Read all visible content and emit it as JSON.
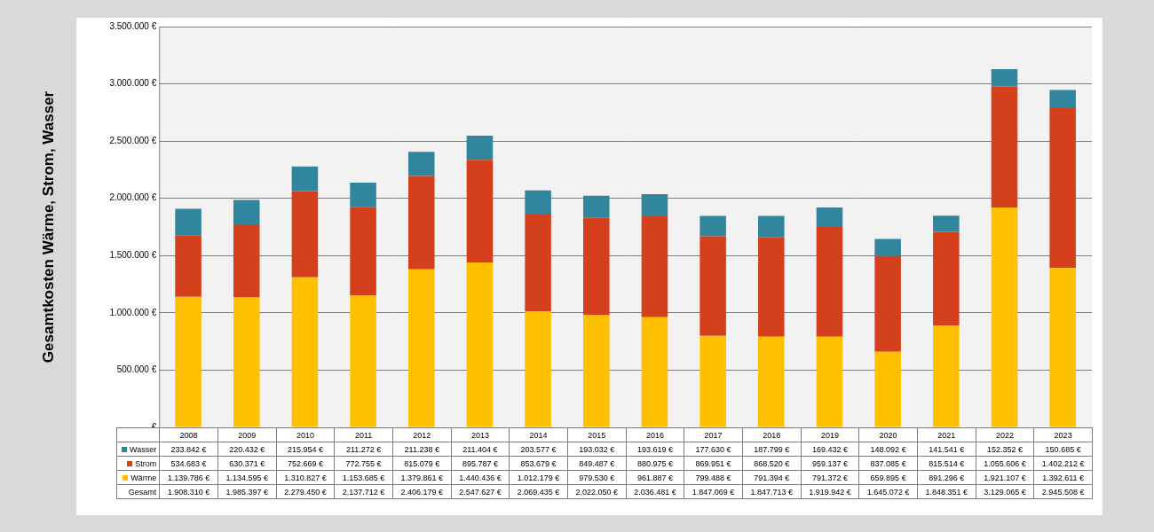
{
  "chart_data": {
    "type": "bar",
    "y_label": "Gesamtkosten Wärme, Strom, Wasser",
    "stacked": true,
    "grid": true,
    "categories": [
      "2008",
      "2009",
      "2010",
      "2011",
      "2012",
      "2013",
      "2014",
      "2015",
      "2016",
      "2017",
      "2018",
      "2019",
      "2020",
      "2021",
      "2022",
      "2023"
    ],
    "series": [
      {
        "name": "Wasser",
        "color": "#31859c",
        "values": [
          233842,
          220432,
          215954,
          211272,
          211238,
          211404,
          203577,
          193032,
          193619,
          177630,
          187799,
          169432,
          148092,
          141541,
          152352,
          150685
        ],
        "value_labels": [
          "233.842 €",
          "220.432 €",
          "215.954 €",
          "211.272 €",
          "211.238 €",
          "211.404 €",
          "203.577 €",
          "193.032 €",
          "193.619 €",
          "177.630 €",
          "187.799 €",
          "169.432 €",
          "148.092 €",
          "141.541 €",
          "152.352 €",
          "150.685 €"
        ]
      },
      {
        "name": "Strom",
        "color": "#d5401c",
        "values": [
          534683,
          630371,
          752669,
          772755,
          815079,
          895787,
          853679,
          849487,
          880975,
          869951,
          868520,
          959137,
          837085,
          815514,
          1055606,
          1402212
        ],
        "value_labels": [
          "534.683 €",
          "630.371 €",
          "752.669 €",
          "772.755 €",
          "815.079 €",
          "895.787 €",
          "853.679 €",
          "849.487 €",
          "880.975 €",
          "869.951 €",
          "868.520 €",
          "959.137 €",
          "837.085 €",
          "815.514 €",
          "1.055.606 €",
          "1.402.212 €"
        ]
      },
      {
        "name": "Wärme",
        "color": "#ffc000",
        "values": [
          1139786,
          1134595,
          1310827,
          1153685,
          1379861,
          1440436,
          1012179,
          979530,
          961887,
          799488,
          791394,
          791372,
          659895,
          891296,
          1921107,
          1392611
        ],
        "value_labels": [
          "1.139.786 €",
          "1.134.595 €",
          "1.310.827 €",
          "1.153.685 €",
          "1.379.861 €",
          "1.440.436 €",
          "1.012.179 €",
          "979.530 €",
          "961.887 €",
          "799.488 €",
          "791.394 €",
          "791.372 €",
          "659.895 €",
          "891.296 €",
          "1.921.107 €",
          "1.392.611 €"
        ]
      }
    ],
    "total_name": "Gesamt",
    "totals": [
      1908310,
      1985397,
      2279450,
      2137712,
      2406179,
      2547627,
      2069435,
      2022050,
      2036481,
      1847069,
      1847713,
      1919942,
      1645072,
      1848351,
      3129065,
      2945508
    ],
    "total_labels": [
      "1.908.310 €",
      "1.985.397 €",
      "2.279.450 €",
      "2.137.712 €",
      "2.406.179 €",
      "2.547.627 €",
      "2.069.435 €",
      "2.022.050 €",
      "2.036.481 €",
      "1.847.069 €",
      "1.847.713 €",
      "1.919.942 €",
      "1.645.072 €",
      "1.848.351 €",
      "3.129.065 €",
      "2.945.508 €"
    ],
    "ylim": [
      0,
      3500000
    ],
    "yticks": [
      {
        "value": 0,
        "label": "-   €"
      },
      {
        "value": 500000,
        "label": "500.000 €"
      },
      {
        "value": 1000000,
        "label": "1.000.000 €"
      },
      {
        "value": 1500000,
        "label": "1.500.000 €"
      },
      {
        "value": 2000000,
        "label": "2.000.000 €"
      },
      {
        "value": 2500000,
        "label": "2.500.000 €"
      },
      {
        "value": 3000000,
        "label": "3.000.000 €"
      },
      {
        "value": 3500000,
        "label": "3.500.000 €"
      }
    ]
  }
}
